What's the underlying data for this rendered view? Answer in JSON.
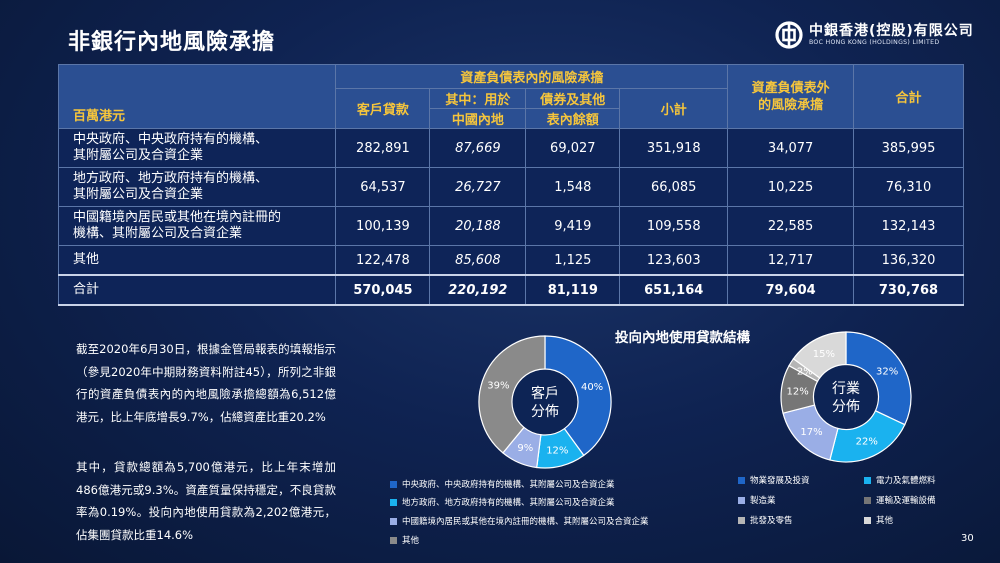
{
  "title": "非銀行內地風險承擔",
  "logo": {
    "cn": "中銀香港(控股)有限公司",
    "en": "BOC HONG KONG (HOLDINGS) LIMITED"
  },
  "table": {
    "unit": "百萬港元",
    "group_header": "資產負債表內的風險承擔",
    "headers": {
      "loans": "客戶貸款",
      "mainland_use": "其中：用於",
      "mainland_use_2": "中國內地",
      "securities": "債券及其他",
      "securities_2": "表內餘額",
      "subtotal": "小計",
      "off_bs": "資產負債表外",
      "off_bs_2": "的風險承擔",
      "total": "合計"
    },
    "rows": [
      {
        "label1": "中央政府、中央政府持有的機構、",
        "label2": "其附屬公司及合資企業",
        "loans": "282,891",
        "mainland": "87,669",
        "securities": "69,027",
        "subtotal": "351,918",
        "off": "34,077",
        "total": "385,995"
      },
      {
        "label1": "地方政府、地方政府持有的機構、",
        "label2": "其附屬公司及合資企業",
        "loans": "64,537",
        "mainland": "26,727",
        "securities": "1,548",
        "subtotal": "66,085",
        "off": "10,225",
        "total": "76,310"
      },
      {
        "label1": "中國籍境內居民或其他在境內註冊的",
        "label2": "機構、其附屬公司及合資企業",
        "loans": "100,139",
        "mainland": "20,188",
        "securities": "9,419",
        "subtotal": "109,558",
        "off": "22,585",
        "total": "132,143"
      },
      {
        "label1": "其他",
        "label2": "",
        "loans": "122,478",
        "mainland": "85,608",
        "securities": "1,125",
        "subtotal": "123,603",
        "off": "12,717",
        "total": "136,320"
      }
    ],
    "total_row": {
      "label": "合計",
      "loans": "570,045",
      "mainland": "220,192",
      "securities": "81,119",
      "subtotal": "651,164",
      "off": "79,604",
      "total": "730,768"
    }
  },
  "paragraphs": [
    "截至2020年6月30日，根據金管局報表的填報指示（參見2020年中期財務資料附註45），所列之非銀行的資產負債表內的內地風險承擔總額為6,512億港元，比上年底增長9.7%，佔總資產比重20.2%",
    "其中，貸款總額為5,700億港元，比上年末增加486億港元或9.3%。資產質量保持穩定，不良貸款率為0.19%。投向內地使用貸款為2,202億港元，佔集團貸款比重14.6%"
  ],
  "chart_data": [
    {
      "type": "pie",
      "title": "投向內地使用貸款結構",
      "center_label": [
        "客戶",
        "分佈"
      ],
      "slices": [
        {
          "name": "中央政府、中央政府持有的機構、其附屬公司及合資企業",
          "value": 40,
          "label": "40%",
          "color": "#1f66c8"
        },
        {
          "name": "地方政府、地方政府持有的機構、其附屬公司及合資企業",
          "value": 12,
          "label": "12%",
          "color": "#1ab2ef"
        },
        {
          "name": "中國籍境內居民或其他在境內註冊的機構、其附屬公司及合資企業",
          "value": 9,
          "label": "9%",
          "color": "#9aaee6"
        },
        {
          "name": "其他",
          "value": 39,
          "label": "39%",
          "color": "#8a8a8a"
        }
      ]
    },
    {
      "type": "pie",
      "center_label": [
        "行業",
        "分佈"
      ],
      "slices": [
        {
          "name": "物業發展及投資",
          "value": 32,
          "label": "32%",
          "color": "#1f66c8"
        },
        {
          "name": "電力及氣體燃料",
          "value": 22,
          "label": "22%",
          "color": "#1ab2ef"
        },
        {
          "name": "製造業",
          "value": 17,
          "label": "17%",
          "color": "#9aaee6"
        },
        {
          "name": "運輸及運輸設備",
          "value": 12,
          "label": "12%",
          "color": "#767676"
        },
        {
          "name": "批發及零售",
          "value": 2,
          "label": "2%",
          "color": "#b5b5b5"
        },
        {
          "name": "其他",
          "value": 15,
          "label": "15%",
          "color": "#d9d9d9"
        }
      ]
    }
  ],
  "page_number": "30"
}
